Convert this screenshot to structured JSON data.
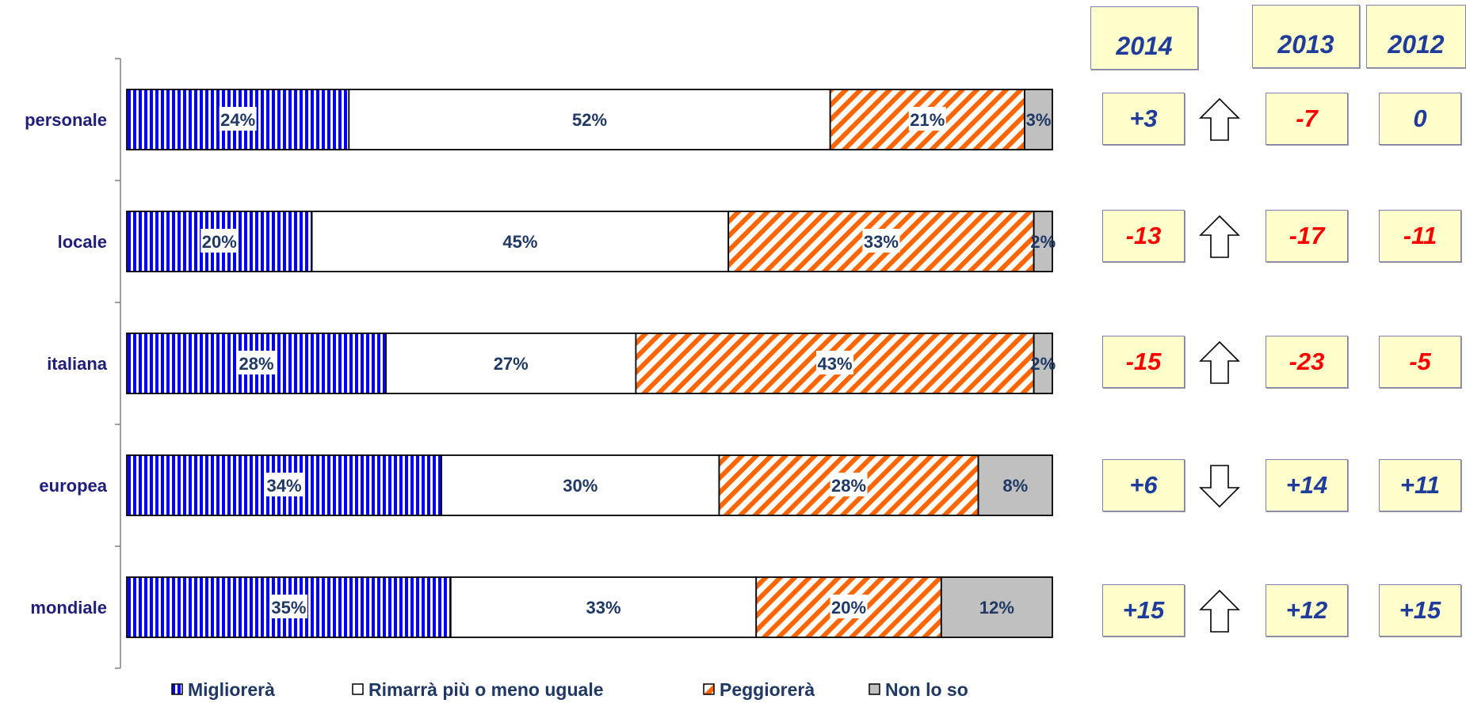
{
  "chart_data": {
    "type": "bar",
    "stacked": true,
    "orientation": "horizontal",
    "normalized_percent": true,
    "categories": [
      "personale",
      "locale",
      "italiana",
      "europea",
      "mondiale"
    ],
    "series": [
      {
        "name": "Migliorerà",
        "values": [
          24,
          20,
          28,
          34,
          35
        ],
        "value_labels": [
          "24%",
          "20%",
          "28%",
          "34%",
          "35%"
        ],
        "color": "#0000ff",
        "pattern": "vertical-stripes"
      },
      {
        "name": "Rimarrà più o meno uguale",
        "values": [
          52,
          45,
          27,
          30,
          33
        ],
        "value_labels": [
          "52%",
          "45%",
          "27%",
          "30%",
          "33%"
        ],
        "color": "#ffffff",
        "pattern": "solid"
      },
      {
        "name": "Peggiorerà",
        "values": [
          21,
          33,
          43,
          28,
          20
        ],
        "value_labels": [
          "21%",
          "33%",
          "43%",
          "28%",
          "20%"
        ],
        "color": "#ff6600",
        "pattern": "diagonal-stripes"
      },
      {
        "name": "Non lo so",
        "values": [
          3,
          2,
          2,
          8,
          12
        ],
        "value_labels": [
          "3%",
          "2%",
          "2%",
          "8%",
          "12%"
        ],
        "color": "#c0c0c0",
        "pattern": "solid"
      }
    ],
    "grid": false,
    "legend_position": "bottom"
  },
  "comparison": {
    "years": [
      "2014",
      "2013",
      "2012"
    ],
    "rows": [
      {
        "category": "personale",
        "values": [
          "+3",
          "-7",
          "0"
        ],
        "arrow": "up"
      },
      {
        "category": "locale",
        "values": [
          "-13",
          "-17",
          "-11"
        ],
        "arrow": "up"
      },
      {
        "category": "italiana",
        "values": [
          "-15",
          "-23",
          "-5"
        ],
        "arrow": "up"
      },
      {
        "category": "europea",
        "values": [
          "+6",
          "+14",
          "+11"
        ],
        "arrow": "down"
      },
      {
        "category": "mondiale",
        "values": [
          "+15",
          "+12",
          "+15"
        ],
        "arrow": "up"
      }
    ],
    "colors": {
      "positive": "#1f3c9a",
      "negative": "#ff0000",
      "box_fill": "#ffffcc"
    }
  }
}
